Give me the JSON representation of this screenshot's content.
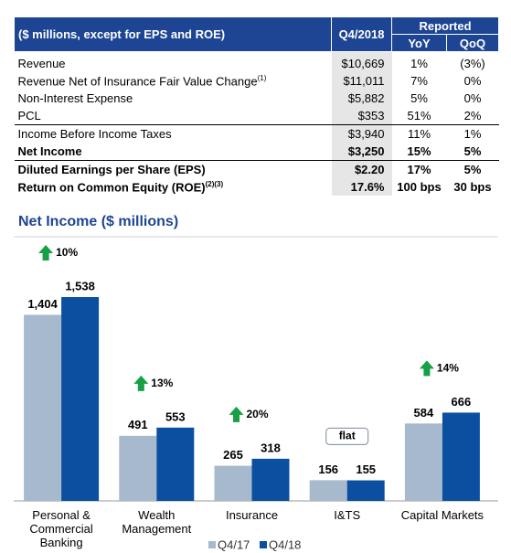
{
  "table": {
    "header": {
      "label": "($ millions, except for EPS and ROE)",
      "period": "Q4/2018",
      "group": "Reported",
      "columns": [
        "YoY",
        "QoQ"
      ]
    },
    "rows": [
      {
        "label": "Revenue",
        "cells": [
          "$10,669",
          "1%",
          "(3%)"
        ],
        "bold": false
      },
      {
        "label": "Revenue Net of Insurance Fair Value Change",
        "note": "(1)",
        "cells": [
          "$11,011",
          "7%",
          "0%"
        ],
        "bold": false
      },
      {
        "label": "Non-Interest Expense",
        "cells": [
          "$5,882",
          "5%",
          "0%"
        ],
        "bold": false
      },
      {
        "label": "PCL",
        "cells": [
          "$353",
          "51%",
          "2%"
        ],
        "bold": false
      },
      {
        "label": "Income Before Income Taxes",
        "cells": [
          "$3,940",
          "11%",
          "1%"
        ],
        "bold": false
      },
      {
        "label": "Net Income",
        "cells": [
          "$3,250",
          "15%",
          "5%"
        ],
        "bold": true
      },
      {
        "label": "Diluted Earnings per Share (EPS)",
        "cells": [
          "$2.20",
          "17%",
          "5%"
        ],
        "bold": true
      },
      {
        "label": "Return on Common Equity (ROE)",
        "note": "(2)(3)",
        "cells": [
          "17.6%",
          "100 bps",
          "30 bps"
        ],
        "bold": true
      }
    ]
  },
  "chart_data": {
    "type": "bar",
    "title": "Net Income ($ millions)",
    "categories": [
      "Personal & Commercial Banking",
      "Wealth Management",
      "Insurance",
      "I&TS",
      "Capital Markets"
    ],
    "series": [
      {
        "name": "Q4/17",
        "color": "#a7b9cd",
        "values": [
          1404,
          491,
          265,
          156,
          584
        ],
        "value_labels": [
          "1,404",
          "491",
          "265",
          "156",
          "584"
        ]
      },
      {
        "name": "Q4/18",
        "color": "#0b4fa0",
        "values": [
          1538,
          553,
          318,
          155,
          666
        ],
        "value_labels": [
          "1,538",
          "553",
          "318",
          "155",
          "666"
        ]
      }
    ],
    "annotations": [
      {
        "text": "10%",
        "arrow": "up"
      },
      {
        "text": "13%",
        "arrow": "up"
      },
      {
        "text": "20%",
        "arrow": "up"
      },
      {
        "text": "flat",
        "arrow": null
      },
      {
        "text": "14%",
        "arrow": "up"
      }
    ],
    "annotation_color": "#17a046"
  }
}
